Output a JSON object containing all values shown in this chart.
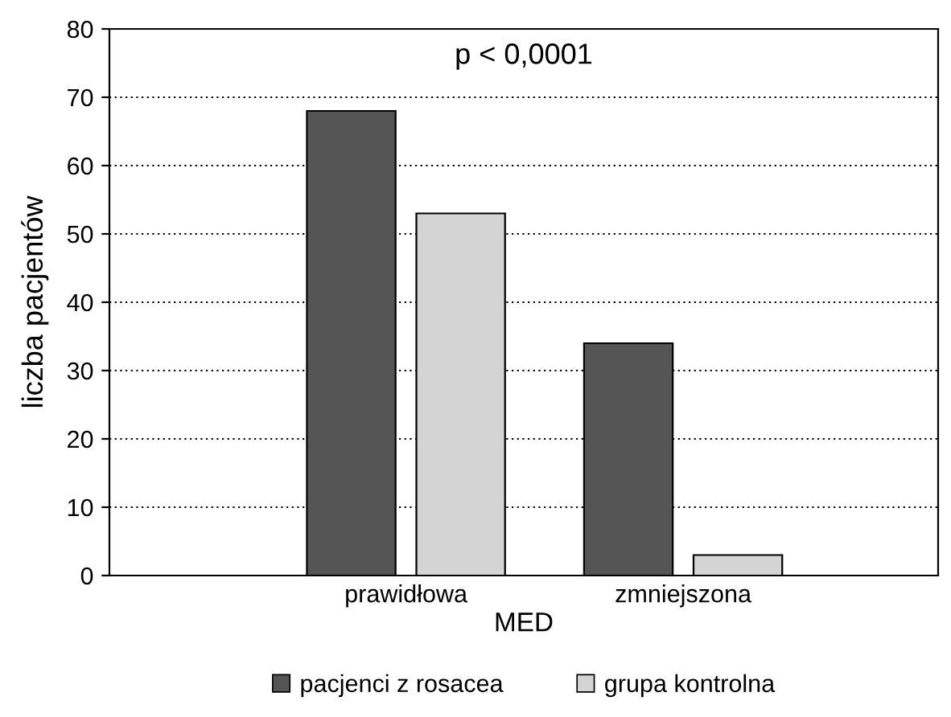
{
  "chart_data": {
    "type": "bar",
    "xlabel": "MED",
    "ylabel": "liczba pacjentów",
    "categories": [
      "prawidłowa",
      "zmniejszona"
    ],
    "series": [
      {
        "name": "pacjenci z rosacea",
        "color": "#555555",
        "values": [
          68,
          34
        ]
      },
      {
        "name": "grupa kontrolna",
        "color": "#d4d4d4",
        "values": [
          53,
          3
        ]
      }
    ],
    "ylim": [
      0,
      80
    ],
    "yticks": [
      0,
      10,
      20,
      30,
      40,
      50,
      60,
      70,
      80
    ],
    "grid": "y",
    "legend": "bottom",
    "annotations": [
      {
        "text": "p < 0,0001"
      }
    ]
  }
}
